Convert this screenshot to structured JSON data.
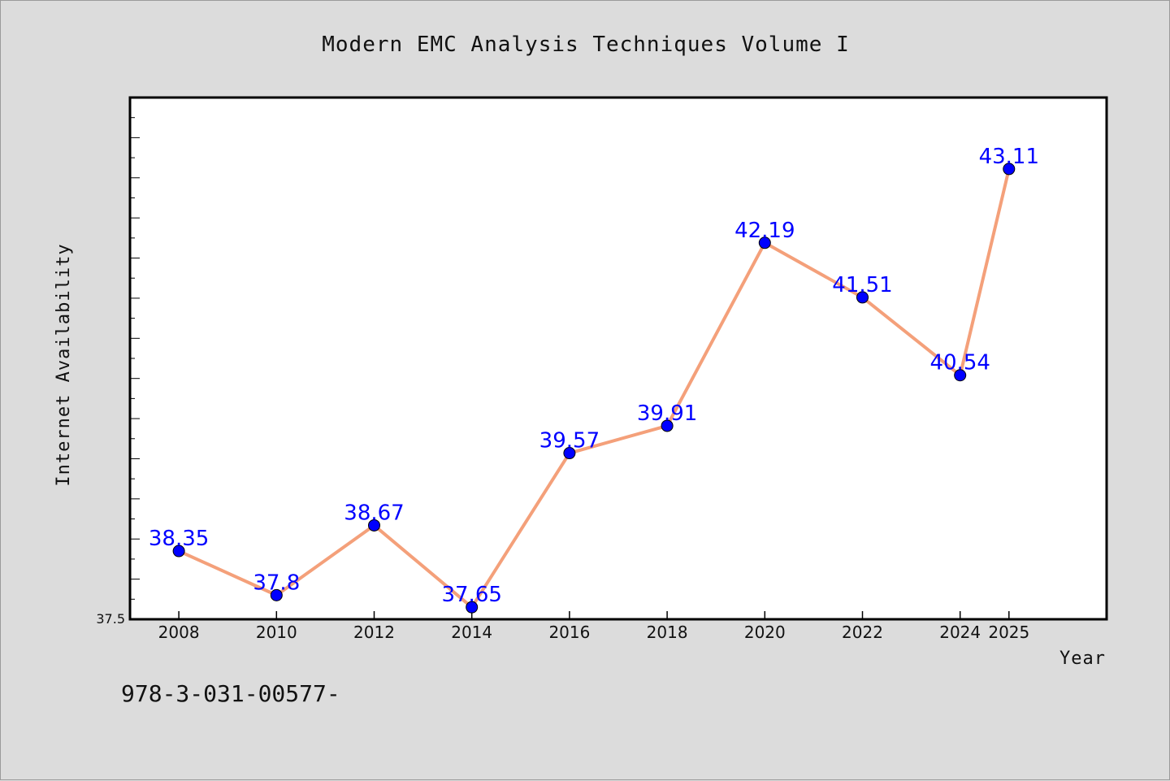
{
  "chart_data": {
    "type": "line",
    "title": "Modern EMC Analysis Techniques Volume I",
    "xlabel": "Year",
    "ylabel": "Internet Availability",
    "x": [
      "2008",
      "2010",
      "2012",
      "2014",
      "2016",
      "2018",
      "2020",
      "2022",
      "2024",
      "2025"
    ],
    "series": [
      {
        "values": [
          38.35,
          37.8,
          38.67,
          37.65,
          39.57,
          39.91,
          42.19,
          41.51,
          40.54,
          43.11
        ],
        "data_labels": [
          "38.35",
          "37.8",
          "38.67",
          "37.65",
          "39.57",
          "39.91",
          "42.19",
          "41.51",
          "40.54",
          "43.11"
        ],
        "line_color": "#f4a07a",
        "marker_color": "#0000ff"
      }
    ],
    "y_tick_labels": [
      "37.5"
    ],
    "ylim": [
      37.5,
      44.0
    ],
    "grid": false,
    "legend": "none"
  },
  "footer": {
    "isbn_text": "978-3-031-00577-"
  },
  "colors": {
    "background": "#dcdcdc",
    "plot_background": "#ffffff",
    "data_label": "#0000ff"
  }
}
